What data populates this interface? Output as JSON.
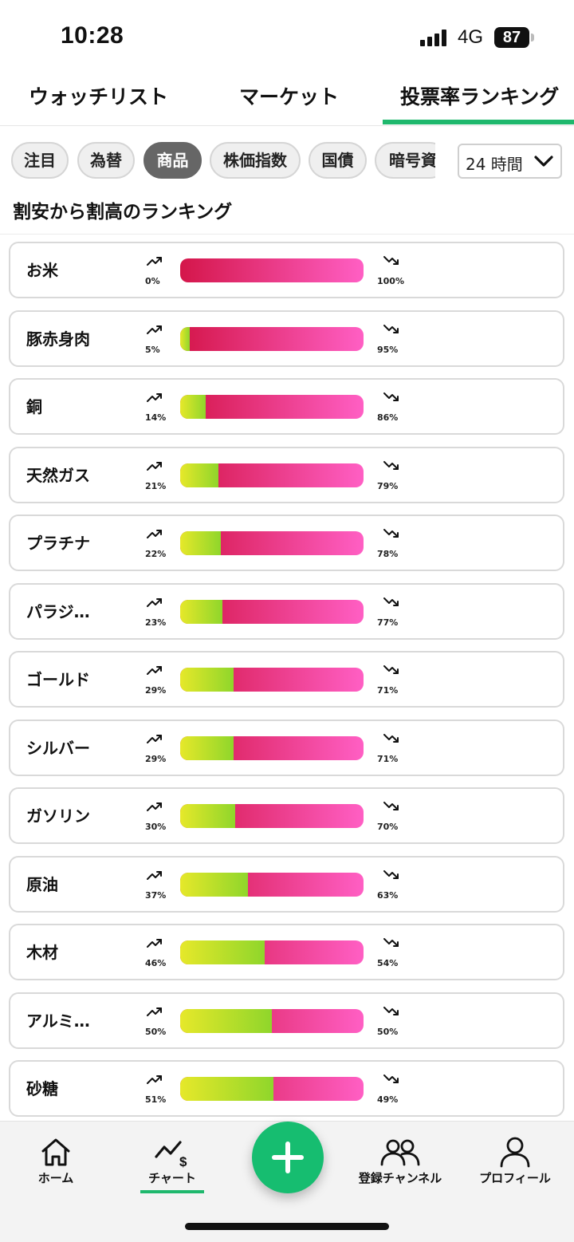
{
  "status_bar": {
    "time": "10:28",
    "network": "4G",
    "battery": "87"
  },
  "tabs": [
    {
      "label": "ウォッチリスト",
      "active": false
    },
    {
      "label": "マーケット",
      "active": false
    },
    {
      "label": "投票率ランキング",
      "active": true
    }
  ],
  "categories": [
    {
      "label": "注目",
      "active": false
    },
    {
      "label": "為替",
      "active": false
    },
    {
      "label": "商品",
      "active": true
    },
    {
      "label": "株価指数",
      "active": false
    },
    {
      "label": "国債",
      "active": false
    },
    {
      "label": "暗号資",
      "active": false
    }
  ],
  "period": {
    "value": "24 時間"
  },
  "section_title": "割安から割高のランキング",
  "rows": [
    {
      "name": "お米",
      "up": 0,
      "down": 100,
      "up_label": "0%",
      "down_label": "100%"
    },
    {
      "name": "豚赤身肉",
      "up": 5,
      "down": 95,
      "up_label": "5%",
      "down_label": "95%"
    },
    {
      "name": "銅",
      "up": 14,
      "down": 86,
      "up_label": "14%",
      "down_label": "86%"
    },
    {
      "name": "天然ガス",
      "up": 21,
      "down": 79,
      "up_label": "21%",
      "down_label": "79%"
    },
    {
      "name": "プラチナ",
      "up": 22,
      "down": 78,
      "up_label": "22%",
      "down_label": "78%"
    },
    {
      "name": "パラジ…",
      "up": 23,
      "down": 77,
      "up_label": "23%",
      "down_label": "77%"
    },
    {
      "name": "ゴールド",
      "up": 29,
      "down": 71,
      "up_label": "29%",
      "down_label": "71%"
    },
    {
      "name": "シルバー",
      "up": 29,
      "down": 71,
      "up_label": "29%",
      "down_label": "71%"
    },
    {
      "name": "ガソリン",
      "up": 30,
      "down": 70,
      "up_label": "30%",
      "down_label": "70%"
    },
    {
      "name": "原油",
      "up": 37,
      "down": 63,
      "up_label": "37%",
      "down_label": "63%"
    },
    {
      "name": "木材",
      "up": 46,
      "down": 54,
      "up_label": "46%",
      "down_label": "54%"
    },
    {
      "name": "アルミ…",
      "up": 50,
      "down": 50,
      "up_label": "50%",
      "down_label": "50%"
    },
    {
      "name": "砂糖",
      "up": 51,
      "down": 49,
      "up_label": "51%",
      "down_label": "49%"
    }
  ],
  "bottom_nav": {
    "home": "ホーム",
    "chart": "チャート",
    "channels": "登録チャンネル",
    "profile": "プロフィール",
    "active": "chart"
  },
  "colors": {
    "accent": "#1fb86d",
    "fab": "#16bd70",
    "down_bar_start": "#d4164a",
    "down_bar_end": "#ff5fc4",
    "up_bar_start": "#e6e82a",
    "up_bar_end": "#8fd62b"
  },
  "icons": {
    "up": "trend-up-icon",
    "down": "trend-down-icon",
    "period": "chevron-down-icon",
    "fab": "plus-icon"
  }
}
